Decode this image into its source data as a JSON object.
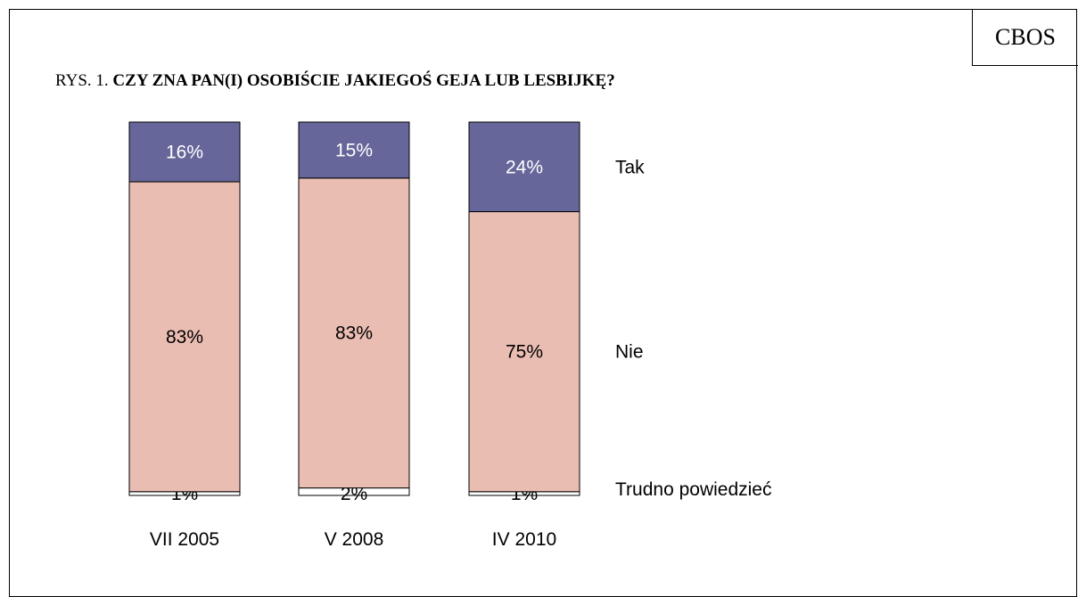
{
  "badge": "CBOS",
  "title_prefix": "RYS. 1.",
  "title_main": "CZY ZNA PAN(I) OSOBIŚCIE JAKIEGOŚ GEJA LUB LESBIJKĘ?",
  "chart_data": {
    "type": "bar",
    "stacked": true,
    "orientation": "vertical",
    "categories": [
      "VII 2005",
      "V 2008",
      "IV 2010"
    ],
    "series": [
      {
        "name": "Trudno powiedzieć",
        "values": [
          1,
          2,
          1
        ],
        "labels": [
          "1%",
          "2%",
          "1%"
        ],
        "color": "#FFFFFF"
      },
      {
        "name": "Nie",
        "values": [
          83,
          83,
          75
        ],
        "labels": [
          "83%",
          "83%",
          "75%"
        ],
        "color": "#EABDB3"
      },
      {
        "name": "Tak",
        "values": [
          16,
          15,
          24
        ],
        "labels": [
          "16%",
          "15%",
          "24%"
        ],
        "color": "#66669A"
      }
    ],
    "ylim": [
      0,
      100
    ],
    "grid": false,
    "legend": "right, beside bar segments",
    "title": "CZY ZNA PAN(I) OSOBIŚCIE JAKIEGOŚ GEJA LUB LESBIJKĘ?"
  }
}
